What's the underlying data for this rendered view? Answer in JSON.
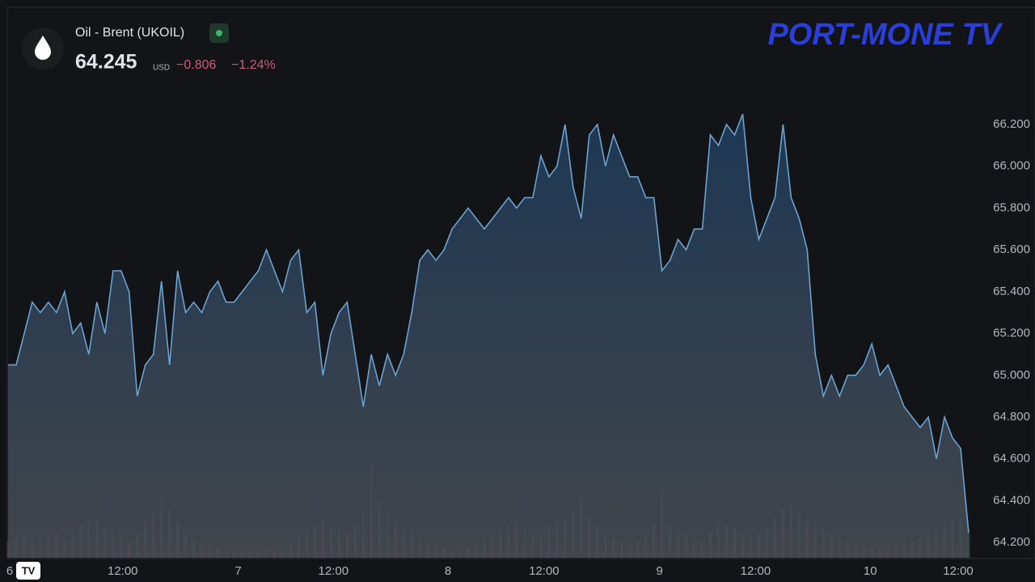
{
  "chart_data": {
    "type": "area",
    "symbol": "Oil - Brent (UKOIL)",
    "price": "64.245",
    "currency": "USD",
    "change": "−0.806",
    "change_pct": "−1.24%",
    "logo": "PORT-MONE TV",
    "color": "#6aa3d0",
    "x": [
      0,
      1,
      2,
      3,
      4,
      5,
      6,
      7,
      8,
      9,
      10,
      11,
      12,
      13,
      14,
      15,
      16,
      17,
      18,
      19,
      20,
      21,
      22,
      23,
      24,
      25,
      26,
      27,
      28,
      29,
      30,
      31,
      32,
      33,
      34,
      35,
      36,
      37,
      38,
      39,
      40,
      41,
      42,
      43,
      44,
      45,
      46,
      47,
      48,
      49,
      50,
      51,
      52,
      53,
      54,
      55,
      56,
      57,
      58,
      59,
      60,
      61,
      62,
      63,
      64,
      65,
      66,
      67,
      68,
      69,
      70,
      71,
      72,
      73,
      74,
      75,
      76,
      77,
      78,
      79,
      80,
      81,
      82,
      83,
      84,
      85,
      86,
      87,
      88,
      89,
      90,
      91,
      92,
      93,
      94,
      95,
      96,
      97,
      98,
      99,
      100,
      101,
      102,
      103,
      104,
      105,
      106,
      107,
      108,
      109,
      110,
      111,
      112,
      113,
      114,
      115,
      116,
      117,
      118,
      119
    ],
    "values": [
      65.05,
      65.05,
      65.2,
      65.35,
      65.3,
      65.35,
      65.3,
      65.4,
      65.2,
      65.25,
      65.1,
      65.35,
      65.2,
      65.5,
      65.5,
      65.4,
      64.9,
      65.05,
      65.1,
      65.45,
      65.05,
      65.5,
      65.3,
      65.35,
      65.3,
      65.4,
      65.45,
      65.35,
      65.35,
      65.4,
      65.45,
      65.5,
      65.6,
      65.5,
      65.4,
      65.55,
      65.6,
      65.3,
      65.35,
      65.0,
      65.2,
      65.3,
      65.35,
      65.1,
      64.85,
      65.1,
      64.95,
      65.1,
      65.0,
      65.1,
      65.3,
      65.55,
      65.6,
      65.55,
      65.6,
      65.7,
      65.75,
      65.8,
      65.75,
      65.7,
      65.75,
      65.8,
      65.85,
      65.8,
      65.85,
      65.85,
      66.05,
      65.95,
      66.0,
      66.2,
      65.9,
      65.75,
      66.15,
      66.2,
      66.0,
      66.15,
      66.05,
      65.95,
      65.95,
      65.85,
      65.85,
      65.5,
      65.55,
      65.65,
      65.6,
      65.7,
      65.7,
      66.15,
      66.1,
      66.2,
      66.15,
      66.25,
      65.85,
      65.65,
      65.75,
      65.85,
      66.2,
      65.85,
      65.75,
      65.6,
      65.1,
      64.9,
      65.0,
      64.9,
      65.0,
      65.0,
      65.05,
      65.15,
      65.0,
      65.05,
      64.95,
      64.85,
      64.8,
      64.75,
      64.8,
      64.6,
      64.8,
      64.7,
      64.65,
      64.245
    ],
    "volume": [
      20,
      25,
      30,
      20,
      15,
      25,
      30,
      20,
      25,
      40,
      45,
      50,
      35,
      30,
      25,
      20,
      30,
      45,
      55,
      75,
      60,
      45,
      30,
      20,
      15,
      15,
      12,
      10,
      10,
      10,
      8,
      10,
      12,
      10,
      10,
      15,
      25,
      35,
      40,
      45,
      40,
      35,
      30,
      40,
      60,
      115,
      70,
      55,
      45,
      35,
      30,
      25,
      20,
      15,
      12,
      10,
      10,
      12,
      15,
      20,
      25,
      35,
      40,
      45,
      35,
      30,
      25,
      40,
      45,
      50,
      60,
      75,
      50,
      40,
      30,
      25,
      20,
      15,
      20,
      30,
      40,
      85,
      40,
      35,
      30,
      25,
      20,
      30,
      45,
      40,
      35,
      30,
      25,
      30,
      40,
      50,
      60,
      70,
      55,
      45,
      40,
      35,
      30,
      25,
      20,
      15,
      15,
      12,
      10,
      10,
      12,
      15,
      20,
      25,
      30,
      35,
      40,
      45,
      50,
      30
    ],
    "xlim": [
      0,
      119
    ],
    "xticks": [
      {
        "value": 0.2,
        "label": "6"
      },
      {
        "value": 14.2,
        "label": "12:00"
      },
      {
        "value": 28.5,
        "label": "7"
      },
      {
        "value": 40.3,
        "label": "12:00"
      },
      {
        "value": 54.5,
        "label": "8"
      },
      {
        "value": 66.4,
        "label": "12:00"
      },
      {
        "value": 80.7,
        "label": "9"
      },
      {
        "value": 92.6,
        "label": "12:00"
      },
      {
        "value": 106.8,
        "label": "10"
      },
      {
        "value": 117.7,
        "label": "12:00"
      }
    ],
    "ylim": [
      64.127,
      66.757
    ],
    "yticks": [
      {
        "value": 64.2,
        "label": "64.200"
      },
      {
        "value": 64.4,
        "label": "64.400"
      },
      {
        "value": 64.6,
        "label": "64.600"
      },
      {
        "value": 64.8,
        "label": "64.800"
      },
      {
        "value": 65.0,
        "label": "65.000"
      },
      {
        "value": 65.2,
        "label": "65.200"
      },
      {
        "value": 65.4,
        "label": "65.400"
      },
      {
        "value": 65.6,
        "label": "65.600"
      },
      {
        "value": 65.8,
        "label": "65.800"
      },
      {
        "value": 66.0,
        "label": "66.000"
      },
      {
        "value": 66.2,
        "label": "66.200"
      }
    ]
  }
}
